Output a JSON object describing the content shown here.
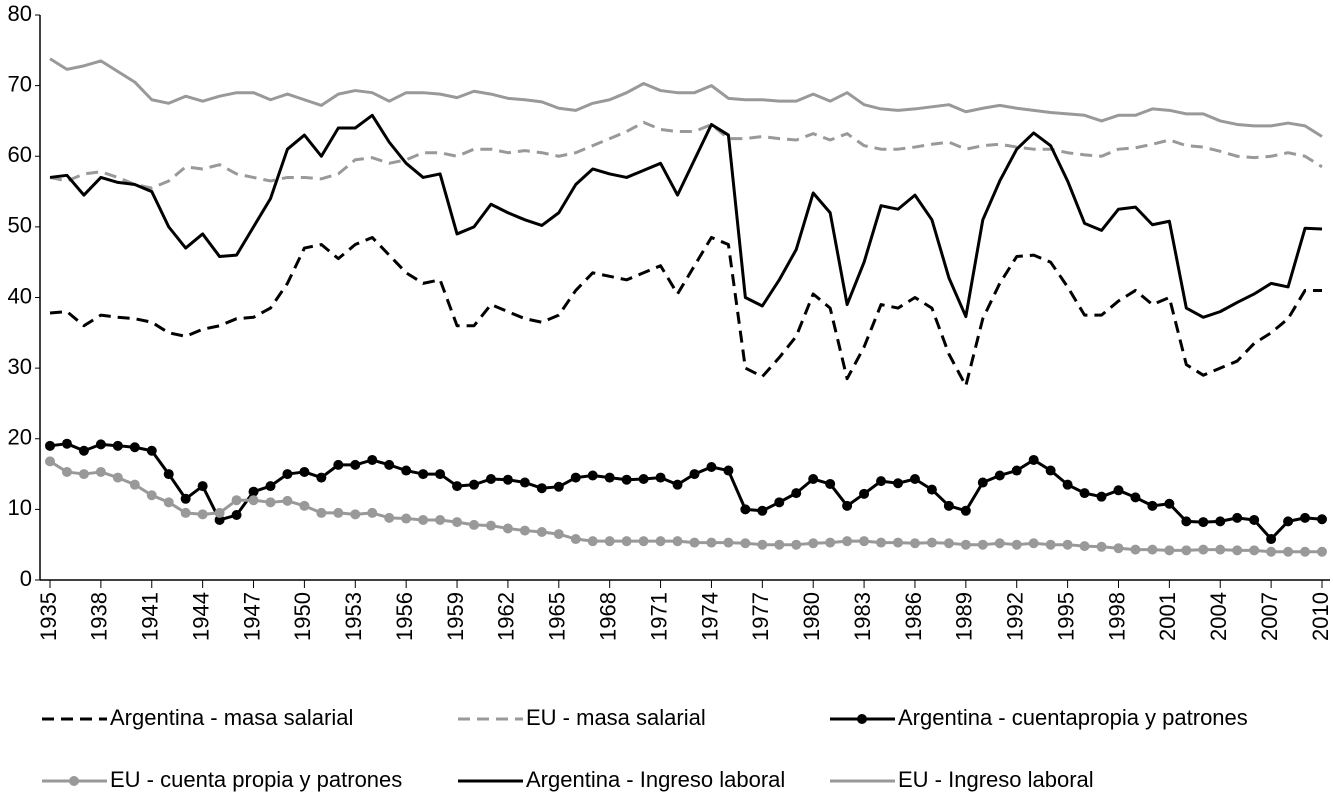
{
  "chart_data": {
    "type": "line",
    "x": [
      1935,
      1936,
      1937,
      1938,
      1939,
      1940,
      1941,
      1942,
      1943,
      1944,
      1945,
      1946,
      1947,
      1948,
      1949,
      1950,
      1951,
      1952,
      1953,
      1954,
      1955,
      1956,
      1957,
      1958,
      1959,
      1960,
      1961,
      1962,
      1963,
      1964,
      1965,
      1966,
      1967,
      1968,
      1969,
      1970,
      1971,
      1972,
      1973,
      1974,
      1975,
      1976,
      1977,
      1978,
      1979,
      1980,
      1981,
      1982,
      1983,
      1984,
      1985,
      1986,
      1987,
      1988,
      1989,
      1990,
      1991,
      1992,
      1993,
      1994,
      1995,
      1996,
      1997,
      1998,
      1999,
      2000,
      2001,
      2002,
      2003,
      2004,
      2005,
      2006,
      2007,
      2008,
      2009,
      2010
    ],
    "xlim": [
      1935,
      2010
    ],
    "xticks": [
      1935,
      1938,
      1941,
      1944,
      1947,
      1950,
      1953,
      1956,
      1959,
      1962,
      1965,
      1968,
      1971,
      1974,
      1977,
      1980,
      1983,
      1986,
      1989,
      1992,
      1995,
      1998,
      2001,
      2004,
      2007,
      2010
    ],
    "ylim": [
      0,
      80
    ],
    "yticks": [
      0,
      10,
      20,
      30,
      40,
      50,
      60,
      70,
      80
    ],
    "grid": false,
    "series": [
      {
        "name": "Argentina - masa salarial",
        "color": "#000000",
        "dashed": true,
        "markers": false,
        "values": [
          37.8,
          38,
          36,
          37.5,
          37.2,
          37,
          36.5,
          35,
          34.5,
          35.5,
          36,
          37,
          37.2,
          38.5,
          42,
          47,
          47.5,
          45.5,
          47.5,
          48.5,
          46,
          43.5,
          42,
          42.5,
          36,
          36,
          39,
          38,
          37,
          36.5,
          37.5,
          41,
          43.5,
          43,
          42.5,
          43.5,
          44.5,
          40.5,
          44.5,
          48.5,
          47.5,
          30,
          28.8,
          31.5,
          34.5,
          40.5,
          38.5,
          28.5,
          33,
          39,
          38.5,
          40,
          38.5,
          32,
          27.5,
          37,
          42,
          45.8,
          46,
          45,
          41.5,
          37.5,
          37.5,
          39.5,
          41,
          39,
          40,
          30.5,
          29,
          30,
          31,
          33.5,
          35,
          37,
          41,
          41
        ]
      },
      {
        "name": "EU - masa salarial",
        "color": "#999999",
        "dashed": true,
        "markers": false,
        "values": [
          57,
          56.5,
          57.5,
          57.8,
          57,
          56,
          55.5,
          56.5,
          58.5,
          58.2,
          58.8,
          57.5,
          57,
          56.5,
          57,
          57,
          56.8,
          57.5,
          59.5,
          59.8,
          59,
          59.5,
          60.5,
          60.5,
          60,
          61,
          61,
          60.5,
          60.8,
          60.5,
          60,
          60.5,
          61.5,
          62.5,
          63.5,
          64.8,
          63.8,
          63.5,
          63.5,
          64.5,
          62.5,
          62.5,
          62.8,
          62.5,
          62.3,
          63.2,
          62.3,
          63.2,
          61.5,
          61,
          61,
          61.3,
          61.7,
          62,
          61,
          61.5,
          61.7,
          61.3,
          61,
          61,
          60.5,
          60.2,
          60,
          61,
          61.2,
          61.7,
          62.3,
          61.5,
          61.3,
          60.7,
          60,
          59.8,
          60,
          60.5,
          60,
          58.5
        ]
      },
      {
        "name": "Argentina - cuentapropia y patrones",
        "color": "#000000",
        "dashed": false,
        "markers": true,
        "values": [
          19,
          19.3,
          18.3,
          19.2,
          19,
          18.8,
          18.3,
          15,
          11.5,
          13.3,
          8.5,
          9.2,
          12.5,
          13.3,
          15,
          15.3,
          14.5,
          16.3,
          16.3,
          17,
          16.3,
          15.5,
          15,
          15,
          13.3,
          13.5,
          14.3,
          14.2,
          13.8,
          13,
          13.2,
          14.5,
          14.8,
          14.5,
          14.2,
          14.3,
          14.5,
          13.5,
          15,
          16,
          15.5,
          10,
          9.8,
          11,
          12.3,
          14.3,
          13.6,
          10.5,
          12.2,
          14,
          13.7,
          14.3,
          12.8,
          10.5,
          9.8,
          13.8,
          14.8,
          15.5,
          17,
          15.5,
          13.5,
          12.3,
          11.8,
          12.7,
          11.7,
          10.5,
          10.8,
          8.3,
          8.2,
          8.3,
          8.8,
          8.5,
          5.8,
          8.3,
          8.8,
          8.6
        ]
      },
      {
        "name": "EU - cuenta propia y patrones",
        "color": "#999999",
        "dashed": false,
        "markers": true,
        "values": [
          16.8,
          15.3,
          15,
          15.3,
          14.5,
          13.5,
          12,
          11,
          9.5,
          9.3,
          9.5,
          11.3,
          11.3,
          11,
          11.2,
          10.5,
          9.5,
          9.5,
          9.3,
          9.5,
          8.8,
          8.7,
          8.5,
          8.5,
          8.2,
          7.8,
          7.7,
          7.3,
          7,
          6.8,
          6.5,
          5.8,
          5.5,
          5.5,
          5.5,
          5.5,
          5.5,
          5.5,
          5.3,
          5.3,
          5.3,
          5.2,
          5,
          5,
          5,
          5.2,
          5.3,
          5.5,
          5.5,
          5.3,
          5.3,
          5.2,
          5.3,
          5.2,
          5,
          5,
          5.2,
          5,
          5.2,
          5,
          5,
          4.8,
          4.7,
          4.5,
          4.3,
          4.3,
          4.2,
          4.2,
          4.3,
          4.3,
          4.2,
          4.2,
          4,
          4,
          4,
          4
        ]
      },
      {
        "name": "Argentina - Ingreso laboral",
        "color": "#000000",
        "dashed": false,
        "markers": false,
        "values": [
          57,
          57.3,
          54.5,
          57,
          56.3,
          56,
          55,
          50,
          47,
          49,
          45.8,
          46,
          50,
          54,
          61,
          63,
          60,
          64,
          64,
          65.8,
          62,
          59,
          57,
          57.5,
          49,
          50,
          53.2,
          52,
          51,
          50.2,
          52,
          56,
          58.2,
          57.5,
          57,
          58,
          59,
          54.5,
          59.5,
          64.5,
          63,
          40,
          38.8,
          42.5,
          46.8,
          54.8,
          52,
          39,
          45,
          53,
          52.5,
          54.5,
          51,
          42.8,
          37.3,
          51,
          56.5,
          61,
          63.3,
          61.5,
          56.5,
          50.5,
          49.5,
          52.5,
          52.8,
          50.3,
          50.8,
          38.5,
          37.2,
          38,
          39.3,
          40.5,
          42,
          41.5,
          49.8,
          49.7
        ]
      },
      {
        "name": "EU - Ingreso laboral",
        "color": "#999999",
        "dashed": false,
        "markers": false,
        "values": [
          73.8,
          72.3,
          72.8,
          73.5,
          72,
          70.5,
          68,
          67.5,
          68.5,
          67.8,
          68.5,
          69,
          69,
          68,
          68.8,
          68,
          67.2,
          68.8,
          69.3,
          69,
          67.8,
          69,
          69,
          68.8,
          68.3,
          69.2,
          68.8,
          68.2,
          68,
          67.7,
          66.8,
          66.5,
          67.5,
          68,
          69,
          70.3,
          69.3,
          69,
          69,
          70,
          68.2,
          68,
          68,
          67.8,
          67.8,
          68.8,
          67.8,
          69,
          67.3,
          66.7,
          66.5,
          66.7,
          67,
          67.3,
          66.3,
          66.8,
          67.2,
          66.8,
          66.5,
          66.2,
          66,
          65.8,
          65,
          65.8,
          65.8,
          66.7,
          66.5,
          66,
          66,
          65,
          64.5,
          64.3,
          64.3,
          64.7,
          64.3,
          62.8
        ]
      }
    ]
  }
}
